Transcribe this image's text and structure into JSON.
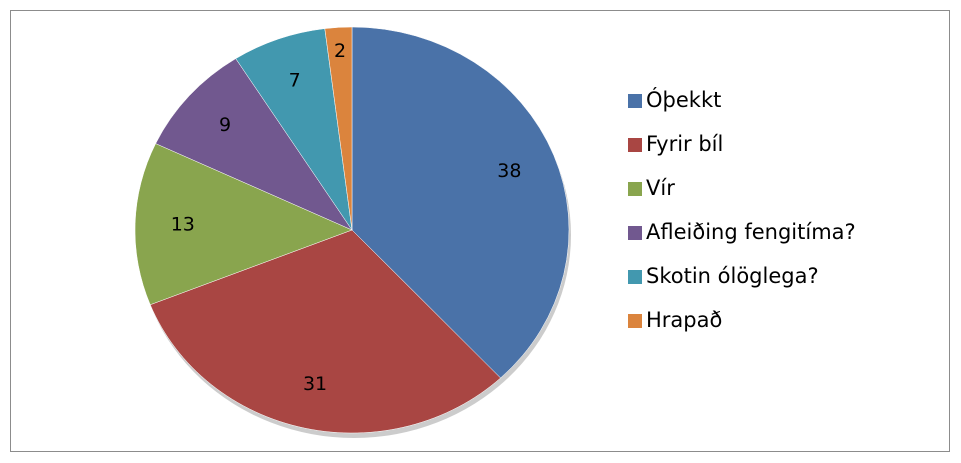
{
  "chart_data": {
    "type": "pie",
    "categories": [
      "Óþekkt",
      "Fyrir bíl",
      "Vír",
      "Afleiðing fengitíma?",
      "Skotin ólöglega?",
      "Hrapað"
    ],
    "values": [
      38,
      31,
      13,
      9,
      7,
      2
    ],
    "colors": [
      "#4a72a8",
      "#a94643",
      "#89a54e",
      "#71588f",
      "#4298af",
      "#db843d"
    ],
    "legend": "right"
  }
}
